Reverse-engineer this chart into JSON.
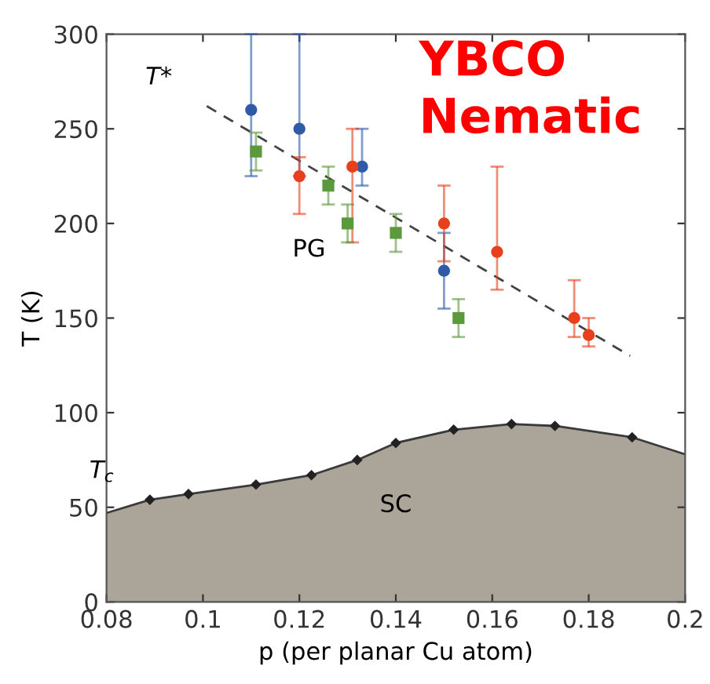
{
  "chart_data": {
    "type": "scatter",
    "xlabel": "p (per planar Cu atom)",
    "ylabel": "T (K)",
    "xlim": [
      0.08,
      0.2
    ],
    "xticks": [
      0.08,
      0.1,
      0.12,
      0.14,
      0.16,
      0.18,
      0.2
    ],
    "ylim": [
      0,
      300
    ],
    "yticks": [
      0,
      50,
      100,
      150,
      200,
      250,
      300
    ],
    "grid": false,
    "legend": false,
    "annotations": [
      {
        "text": "T*",
        "x": 0.1008,
        "y": 262
      },
      {
        "text": "T$_{c}$",
        "x": 0.089,
        "y": 54
      },
      "PG",
      "SC",
      "YBCO\nNematic"
    ],
    "series": [
      {
        "type": "area",
        "color": "#aba498",
        "x": [
          0.08,
          0.089,
          0.097,
          0.111,
          0.1225,
          0.132,
          0.14,
          0.152,
          0.164,
          0.173,
          0.189,
          0.2
        ],
        "values": [
          47,
          54,
          57,
          62,
          67,
          75,
          84,
          91,
          94,
          93,
          87,
          78
        ]
      },
      {
        "marker": "diamond",
        "color": "#222222",
        "x": [
          0.089,
          0.097,
          0.111,
          0.1225,
          0.132,
          0.14,
          0.152,
          0.164,
          0.173,
          0.189
        ],
        "values": [
          54,
          57,
          62,
          67,
          75,
          84,
          91,
          94,
          93,
          87
        ]
      },
      {
        "type": "line",
        "line_style": "dashed",
        "color": "#444444",
        "x": [
          0.1008,
          0.1886
        ],
        "values": [
          262,
          130
        ]
      },
      {
        "marker": "circle",
        "color": "#2f5aa8",
        "x": [
          0.11,
          0.12,
          0.133,
          0.15
        ],
        "values": [
          260,
          250,
          230,
          175
        ],
        "errors": [
          [
            225,
            300
          ],
          [
            225,
            300
          ],
          [
            220,
            250
          ],
          [
            155,
            195
          ]
        ]
      },
      {
        "marker": "circle",
        "color": "#e8401c",
        "x": [
          0.12,
          0.131,
          0.15,
          0.161,
          0.177,
          0.18
        ],
        "values": [
          225,
          230,
          200,
          185,
          150,
          141
        ],
        "errors": [
          [
            205,
            235
          ],
          [
            190,
            250
          ],
          [
            180,
            220
          ],
          [
            165,
            230
          ],
          [
            140,
            170
          ],
          [
            135,
            150
          ]
        ]
      },
      {
        "marker": "square",
        "color": "#5a9a3c",
        "x": [
          0.111,
          0.126,
          0.13,
          0.14,
          0.153
        ],
        "values": [
          238,
          220,
          200,
          195,
          150
        ],
        "errors": [
          [
            228,
            248
          ],
          [
            210,
            230
          ],
          [
            190,
            210
          ],
          [
            185,
            205
          ],
          [
            140,
            160
          ]
        ]
      }
    ]
  }
}
